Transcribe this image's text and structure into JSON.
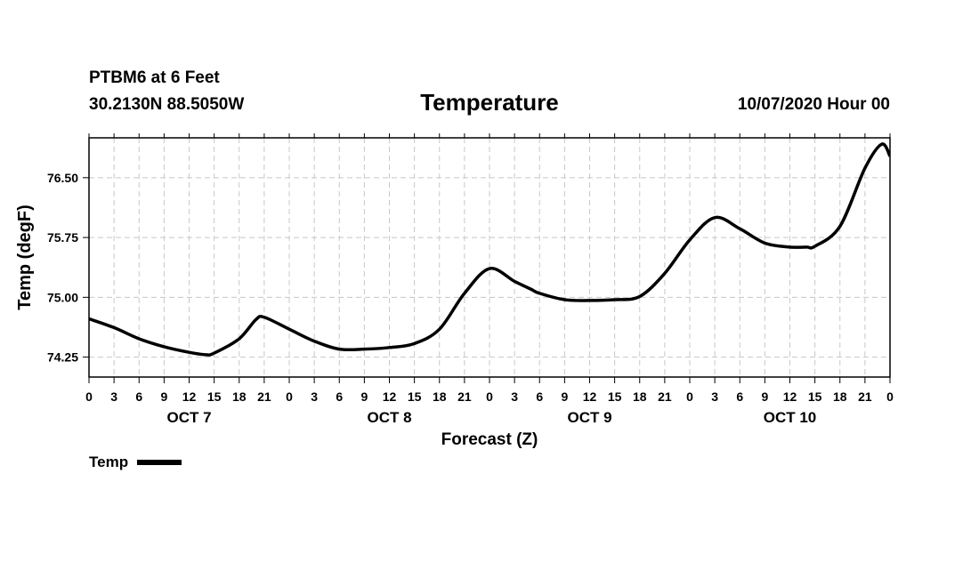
{
  "header": {
    "station": "PTBM6 at 6 Feet",
    "coords": "30.2130N 88.5050W",
    "title": "Temperature",
    "run_time": "10/07/2020 Hour 00"
  },
  "legend": {
    "label": "Temp"
  },
  "chart_data": {
    "type": "line",
    "title": "Temperature",
    "xlabel": "Forecast (Z)",
    "ylabel": "Temp (degF)",
    "xlim": [
      0,
      96
    ],
    "ylim": [
      74.0,
      77.0
    ],
    "y_ticks": [
      74.25,
      75.0,
      75.75,
      76.5
    ],
    "y_tick_labels": [
      "74.25",
      "75.00",
      "75.75",
      "76.50"
    ],
    "x_ticks": [
      0,
      3,
      6,
      9,
      12,
      15,
      18,
      21,
      24,
      27,
      30,
      33,
      36,
      39,
      42,
      45,
      48,
      51,
      54,
      57,
      60,
      63,
      66,
      69,
      72,
      75,
      78,
      81,
      84,
      87,
      90,
      93,
      96
    ],
    "x_tick_labels": [
      "0",
      "3",
      "6",
      "9",
      "12",
      "15",
      "18",
      "21",
      "0",
      "3",
      "6",
      "9",
      "12",
      "15",
      "18",
      "21",
      "0",
      "3",
      "6",
      "9",
      "12",
      "15",
      "18",
      "21",
      "0",
      "3",
      "6",
      "9",
      "12",
      "15",
      "18",
      "21",
      "0"
    ],
    "day_labels": [
      {
        "label": "OCT 7",
        "x": 12
      },
      {
        "label": "OCT 8",
        "x": 36
      },
      {
        "label": "OCT 9",
        "x": 60
      },
      {
        "label": "OCT 10",
        "x": 84
      }
    ],
    "grid": true,
    "legend_position": "bottom-left",
    "series": [
      {
        "name": "Temp",
        "color": "#000000",
        "x": [
          0,
          3,
          6,
          9,
          12,
          14,
          15,
          18,
          20,
          21,
          24,
          27,
          30,
          33,
          36,
          39,
          42,
          45,
          48,
          51,
          53,
          54,
          57,
          60,
          63,
          66,
          69,
          72,
          75,
          78,
          81,
          84,
          86,
          87,
          90,
          93,
          95,
          96
        ],
        "values": [
          74.73,
          74.62,
          74.48,
          74.38,
          74.31,
          74.28,
          74.3,
          74.48,
          74.72,
          74.75,
          74.6,
          74.45,
          74.35,
          74.35,
          74.37,
          74.42,
          74.6,
          75.05,
          75.36,
          75.2,
          75.1,
          75.05,
          74.97,
          74.96,
          74.97,
          75.01,
          75.3,
          75.72,
          76.0,
          75.86,
          75.68,
          75.63,
          75.63,
          75.64,
          75.89,
          76.62,
          76.92,
          76.77
        ]
      }
    ]
  }
}
